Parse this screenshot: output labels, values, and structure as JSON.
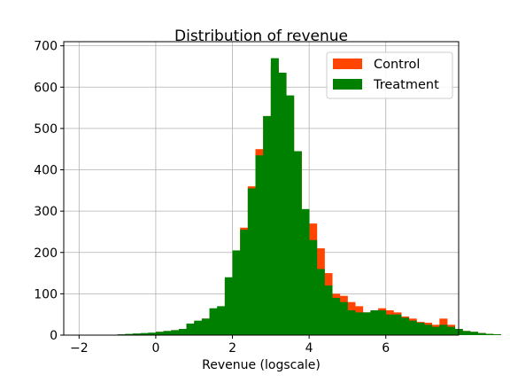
{
  "chart_data": {
    "type": "bar",
    "title": "Distribution of revenue",
    "xlabel": "Revenue (logscale)",
    "ylabel": "",
    "xlim": [
      -2.4,
      7.9
    ],
    "ylim": [
      0,
      710
    ],
    "xticks": [
      -2,
      0,
      2,
      4,
      6
    ],
    "yticks": [
      0,
      100,
      200,
      300,
      400,
      500,
      600,
      700
    ],
    "grid": true,
    "legend_position": "top-right",
    "bin_width": 0.2,
    "bin_start": -1.2,
    "series": [
      {
        "name": "Control",
        "color": "#ff4500",
        "values": [
          1,
          1,
          2,
          3,
          3,
          5,
          8,
          10,
          12,
          15,
          25,
          32,
          40,
          55,
          65,
          135,
          200,
          260,
          360,
          450,
          530,
          650,
          630,
          575,
          445,
          300,
          270,
          210,
          150,
          100,
          95,
          80,
          70,
          55,
          60,
          65,
          60,
          55,
          45,
          40,
          32,
          30,
          25,
          40,
          25,
          15,
          10,
          8,
          5,
          3,
          2
        ]
      },
      {
        "name": "Treatment",
        "color": "#008000",
        "values": [
          1,
          2,
          3,
          4,
          5,
          6,
          8,
          10,
          12,
          15,
          28,
          35,
          40,
          65,
          70,
          140,
          205,
          255,
          355,
          435,
          530,
          670,
          635,
          580,
          445,
          305,
          230,
          160,
          120,
          90,
          80,
          60,
          55,
          55,
          60,
          60,
          50,
          50,
          42,
          35,
          30,
          25,
          20,
          25,
          20,
          15,
          10,
          8,
          5,
          3,
          2
        ]
      }
    ]
  }
}
